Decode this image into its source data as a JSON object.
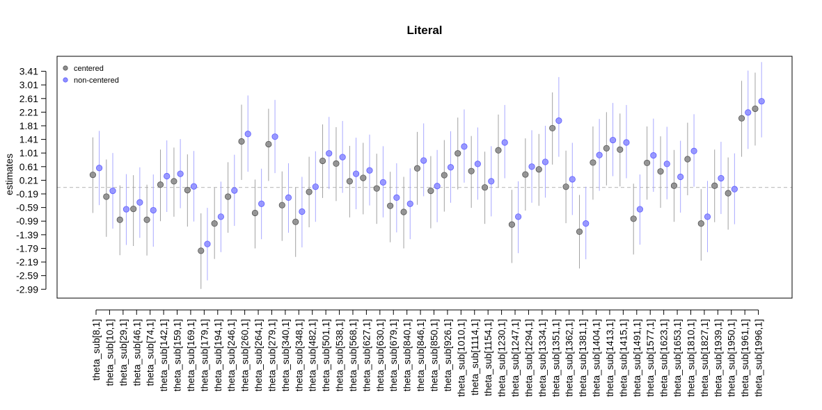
{
  "chart_data": {
    "type": "scatter",
    "title": "Literal",
    "xlabel": "",
    "ylabel": "estimates",
    "ylim": [
      -3.25,
      3.85
    ],
    "yticks": [
      -2.99,
      -2.59,
      -2.19,
      -1.79,
      -1.39,
      -0.99,
      -0.59,
      -0.19,
      0.21,
      0.61,
      1.01,
      1.41,
      1.81,
      2.21,
      2.61,
      3.01,
      3.41
    ],
    "ytick_labels": [
      "-2.99",
      "-2.59",
      "-2.19",
      "-1.79",
      "-1.39",
      "-0.99",
      "-0.59",
      "-0.19",
      "0.21",
      "0.61",
      "1.01",
      "1.41",
      "1.81",
      "2.21",
      "2.61",
      "3.01",
      "3.41"
    ],
    "reference_line": 0,
    "legend_position": "top-left",
    "categories": [
      "theta_sub[8,1]",
      "theta_sub[10,1]",
      "theta_sub[29,1]",
      "theta_sub[46,1]",
      "theta_sub[74,1]",
      "theta_sub[142,1]",
      "theta_sub[159,1]",
      "theta_sub[169,1]",
      "theta_sub[179,1]",
      "theta_sub[194,1]",
      "theta_sub[246,1]",
      "theta_sub[260,1]",
      "theta_sub[264,1]",
      "theta_sub[279,1]",
      "theta_sub[340,1]",
      "theta_sub[348,1]",
      "theta_sub[482,1]",
      "theta_sub[501,1]",
      "theta_sub[538,1]",
      "theta_sub[568,1]",
      "theta_sub[627,1]",
      "theta_sub[630,1]",
      "theta_sub[679,1]",
      "theta_sub[840,1]",
      "theta_sub[846,1]",
      "theta_sub[850,1]",
      "theta_sub[926,1]",
      "theta_sub[1010,1]",
      "theta_sub[1114,1]",
      "theta_sub[1154,1]",
      "theta_sub[1230,1]",
      "theta_sub[1247,1]",
      "theta_sub[1294,1]",
      "theta_sub[1334,1]",
      "theta_sub[1351,1]",
      "theta_sub[1362,1]",
      "theta_sub[1381,1]",
      "theta_sub[1404,1]",
      "theta_sub[1413,1]",
      "theta_sub[1415,1]",
      "theta_sub[1491,1]",
      "theta_sub[1577,1]",
      "theta_sub[1623,1]",
      "theta_sub[1653,1]",
      "theta_sub[1810,1]",
      "theta_sub[1827,1]",
      "theta_sub[1939,1]",
      "theta_sub[1950,1]",
      "theta_sub[1961,1]",
      "theta_sub[1996,1]"
    ],
    "series": [
      {
        "name": "centered",
        "color": "#7f7f7f",
        "values": [
          0.37,
          -0.27,
          -0.95,
          -0.63,
          -0.95,
          0.08,
          0.18,
          -0.08,
          -1.86,
          -1.06,
          -0.27,
          1.35,
          -0.75,
          1.27,
          -0.52,
          -1.01,
          -0.13,
          0.78,
          0.7,
          0.18,
          0.28,
          -0.03,
          -0.54,
          -0.72,
          0.56,
          -0.1,
          0.36,
          1.0,
          0.48,
          0.0,
          1.09,
          -1.09,
          0.38,
          0.53,
          1.74,
          0.02,
          -1.3,
          0.73,
          1.15,
          1.11,
          -0.92,
          0.72,
          0.47,
          0.05,
          0.83,
          -1.06,
          0.05,
          -0.17,
          2.03,
          2.31
        ],
        "lower": [
          -0.75,
          -1.45,
          -1.99,
          -1.72,
          -2.0,
          -0.99,
          -0.86,
          -1.15,
          -2.98,
          -2.1,
          -1.33,
          0.22,
          -1.79,
          0.19,
          -1.57,
          -2.04,
          -1.17,
          -0.31,
          -0.4,
          -0.88,
          -0.79,
          -1.07,
          -1.61,
          -1.79,
          -0.51,
          -1.2,
          -0.71,
          -0.06,
          -0.6,
          -1.07,
          0.0,
          -2.22,
          -0.68,
          -0.54,
          0.67,
          -1.05,
          -2.38,
          -0.36,
          0.06,
          0.03,
          -1.97,
          -0.36,
          -0.6,
          -1.01,
          -0.23,
          -2.15,
          -1.02,
          -1.24,
          0.9,
          1.23
        ],
        "upper": [
          1.47,
          0.82,
          0.06,
          0.36,
          0.08,
          1.11,
          1.17,
          0.97,
          -0.76,
          -0.01,
          0.74,
          2.43,
          0.23,
          2.31,
          0.47,
          0.0,
          0.9,
          1.85,
          1.77,
          1.22,
          1.31,
          0.99,
          0.46,
          0.31,
          1.63,
          0.92,
          1.39,
          2.05,
          1.51,
          1.05,
          2.14,
          -0.07,
          1.44,
          1.57,
          2.79,
          1.08,
          -0.22,
          1.79,
          2.21,
          2.17,
          0.11,
          1.79,
          1.5,
          1.1,
          1.9,
          -0.05,
          1.11,
          0.88,
          3.13,
          3.37
        ]
      },
      {
        "name": "non-centered",
        "color": "#7f7fff",
        "values": [
          0.57,
          -0.1,
          -0.64,
          -0.44,
          -0.67,
          0.33,
          0.4,
          0.03,
          -1.66,
          -0.86,
          -0.09,
          1.57,
          -0.48,
          1.49,
          -0.3,
          -0.71,
          0.02,
          1.0,
          0.89,
          0.4,
          0.5,
          0.15,
          -0.3,
          -0.48,
          0.79,
          0.04,
          0.59,
          1.2,
          0.69,
          0.18,
          1.32,
          -0.86,
          0.61,
          0.75,
          1.96,
          0.24,
          -1.06,
          0.95,
          1.39,
          1.32,
          -0.64,
          0.94,
          0.69,
          0.31,
          1.07,
          -0.86,
          0.27,
          -0.05,
          2.2,
          2.53
        ],
        "lower": [
          -0.52,
          -1.21,
          -1.69,
          -1.48,
          -1.74,
          -0.72,
          -0.61,
          -1.0,
          -2.73,
          -1.9,
          -1.13,
          0.46,
          -1.52,
          0.42,
          -1.33,
          -1.76,
          -1.01,
          -0.05,
          -0.16,
          -0.64,
          -0.53,
          -0.88,
          -1.32,
          -1.52,
          -0.26,
          -1.02,
          -0.45,
          0.14,
          -0.36,
          -0.85,
          0.27,
          -1.93,
          -0.45,
          -0.3,
          0.9,
          -0.81,
          -2.11,
          -0.1,
          0.33,
          0.27,
          -1.68,
          -0.13,
          -0.35,
          -0.74,
          0.02,
          -1.9,
          -0.78,
          -1.08,
          1.13,
          1.47
        ],
        "upper": [
          1.66,
          1.01,
          0.39,
          0.59,
          0.38,
          1.38,
          1.42,
          1.07,
          -0.6,
          0.17,
          0.96,
          2.7,
          0.55,
          2.57,
          0.71,
          0.31,
          1.06,
          2.07,
          1.95,
          1.46,
          1.55,
          1.21,
          0.71,
          0.56,
          1.88,
          1.1,
          1.65,
          2.29,
          1.76,
          1.21,
          2.42,
          0.18,
          1.68,
          1.81,
          3.24,
          1.31,
          0.02,
          2.01,
          2.48,
          2.42,
          0.38,
          2.02,
          1.78,
          1.37,
          2.15,
          0.19,
          1.34,
          1.0,
          3.43,
          3.68
        ]
      }
    ]
  }
}
